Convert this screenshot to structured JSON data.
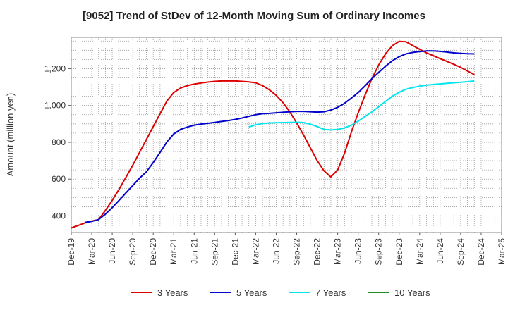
{
  "chart_data": {
    "type": "line",
    "title": "[9052]  Trend of StDev of 12-Month Moving Sum of Ordinary Incomes",
    "ylabel": "Amount (million yen)",
    "xlabel": "",
    "ylim": [
      310,
      1370
    ],
    "yticks": [
      400,
      600,
      800,
      1000,
      1200
    ],
    "grid": true,
    "legend_position": "bottom",
    "x_tick_labels": [
      "Dec-19",
      "Mar-20",
      "Jun-20",
      "Sep-20",
      "Dec-20",
      "Mar-21",
      "Jun-21",
      "Sep-21",
      "Dec-21",
      "Mar-22",
      "Jun-22",
      "Sep-22",
      "Dec-22",
      "Mar-23",
      "Jun-23",
      "Sep-23",
      "Dec-23",
      "Mar-24",
      "Jun-24",
      "Sep-24",
      "Dec-24",
      "Mar-25"
    ],
    "series": [
      {
        "name": "3 Years",
        "color": "#dd0000",
        "points": [
          [
            0,
            335
          ],
          [
            1,
            348
          ],
          [
            2,
            362
          ],
          [
            3,
            372
          ],
          [
            4,
            380
          ],
          [
            5,
            430
          ],
          [
            6,
            485
          ],
          [
            7,
            545
          ],
          [
            8,
            610
          ],
          [
            9,
            675
          ],
          [
            10,
            745
          ],
          [
            11,
            815
          ],
          [
            12,
            885
          ],
          [
            13,
            955
          ],
          [
            14,
            1025
          ],
          [
            15,
            1070
          ],
          [
            16,
            1095
          ],
          [
            17,
            1108
          ],
          [
            18,
            1116
          ],
          [
            19,
            1122
          ],
          [
            20,
            1127
          ],
          [
            21,
            1131
          ],
          [
            22,
            1133
          ],
          [
            23,
            1134
          ],
          [
            24,
            1133
          ],
          [
            25,
            1131
          ],
          [
            26,
            1128
          ],
          [
            27,
            1123
          ],
          [
            28,
            1108
          ],
          [
            29,
            1085
          ],
          [
            30,
            1055
          ],
          [
            31,
            1015
          ],
          [
            32,
            965
          ],
          [
            33,
            905
          ],
          [
            34,
            840
          ],
          [
            35,
            770
          ],
          [
            36,
            700
          ],
          [
            37,
            645
          ],
          [
            38,
            612
          ],
          [
            39,
            650
          ],
          [
            40,
            740
          ],
          [
            41,
            855
          ],
          [
            42,
            960
          ],
          [
            43,
            1055
          ],
          [
            44,
            1145
          ],
          [
            45,
            1220
          ],
          [
            46,
            1280
          ],
          [
            47,
            1325
          ],
          [
            48,
            1348
          ],
          [
            49,
            1346
          ],
          [
            50,
            1325
          ],
          [
            51,
            1305
          ],
          [
            52,
            1286
          ],
          [
            53,
            1270
          ],
          [
            54,
            1254
          ],
          [
            55,
            1239
          ],
          [
            56,
            1224
          ],
          [
            57,
            1207
          ],
          [
            58,
            1187
          ],
          [
            59,
            1167
          ]
        ]
      },
      {
        "name": "5 Years",
        "color": "#0000cc",
        "points": [
          [
            2,
            365
          ],
          [
            3,
            370
          ],
          [
            4,
            380
          ],
          [
            5,
            410
          ],
          [
            6,
            445
          ],
          [
            7,
            485
          ],
          [
            8,
            525
          ],
          [
            9,
            565
          ],
          [
            10,
            605
          ],
          [
            11,
            640
          ],
          [
            12,
            690
          ],
          [
            13,
            745
          ],
          [
            14,
            802
          ],
          [
            15,
            845
          ],
          [
            16,
            870
          ],
          [
            17,
            883
          ],
          [
            18,
            893
          ],
          [
            19,
            899
          ],
          [
            20,
            903
          ],
          [
            21,
            908
          ],
          [
            22,
            913
          ],
          [
            23,
            918
          ],
          [
            24,
            924
          ],
          [
            25,
            932
          ],
          [
            26,
            941
          ],
          [
            27,
            950
          ],
          [
            28,
            955
          ],
          [
            29,
            957
          ],
          [
            30,
            960
          ],
          [
            31,
            963
          ],
          [
            32,
            966
          ],
          [
            33,
            968
          ],
          [
            34,
            968
          ],
          [
            35,
            966
          ],
          [
            36,
            964
          ],
          [
            37,
            966
          ],
          [
            38,
            975
          ],
          [
            39,
            990
          ],
          [
            40,
            1012
          ],
          [
            41,
            1040
          ],
          [
            42,
            1070
          ],
          [
            43,
            1106
          ],
          [
            44,
            1145
          ],
          [
            45,
            1180
          ],
          [
            46,
            1213
          ],
          [
            47,
            1243
          ],
          [
            48,
            1265
          ],
          [
            49,
            1280
          ],
          [
            50,
            1288
          ],
          [
            51,
            1293
          ],
          [
            52,
            1296
          ],
          [
            53,
            1296
          ],
          [
            54,
            1294
          ],
          [
            55,
            1290
          ],
          [
            56,
            1286
          ],
          [
            57,
            1283
          ],
          [
            58,
            1281
          ],
          [
            59,
            1280
          ]
        ]
      },
      {
        "name": "7 Years",
        "color": "#00e5ee",
        "points": [
          [
            26,
            883
          ],
          [
            27,
            895
          ],
          [
            28,
            902
          ],
          [
            29,
            905
          ],
          [
            30,
            906
          ],
          [
            31,
            907
          ],
          [
            32,
            908
          ],
          [
            33,
            909
          ],
          [
            34,
            907
          ],
          [
            35,
            898
          ],
          [
            36,
            885
          ],
          [
            37,
            870
          ],
          [
            38,
            867
          ],
          [
            39,
            870
          ],
          [
            40,
            878
          ],
          [
            41,
            893
          ],
          [
            42,
            915
          ],
          [
            43,
            940
          ],
          [
            44,
            965
          ],
          [
            45,
            993
          ],
          [
            46,
            1022
          ],
          [
            47,
            1050
          ],
          [
            48,
            1072
          ],
          [
            49,
            1088
          ],
          [
            50,
            1098
          ],
          [
            51,
            1105
          ],
          [
            52,
            1110
          ],
          [
            53,
            1114
          ],
          [
            54,
            1117
          ],
          [
            55,
            1120
          ],
          [
            56,
            1123
          ],
          [
            57,
            1126
          ],
          [
            58,
            1129
          ],
          [
            59,
            1133
          ]
        ]
      },
      {
        "name": "10 Years",
        "color": "#228b22",
        "points": []
      }
    ]
  }
}
